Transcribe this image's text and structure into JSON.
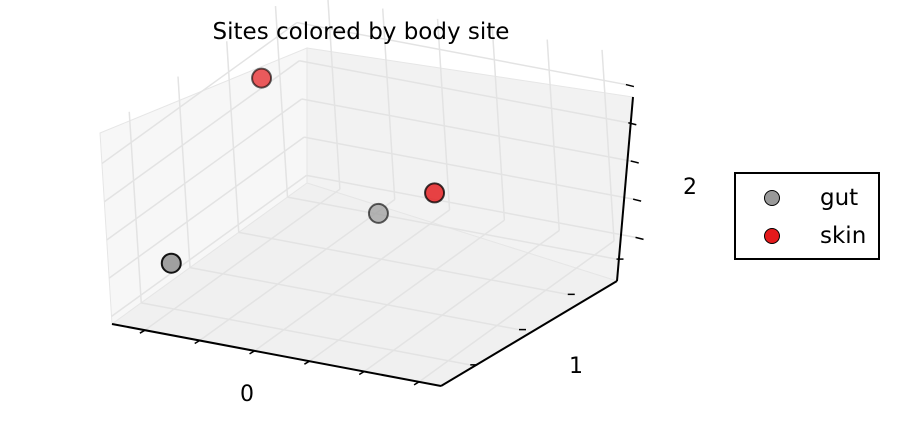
{
  "chart_data": {
    "type": "scatter",
    "title": "Sites colored by body site",
    "xlabel": "",
    "ylabel": "",
    "zlabel": "",
    "xlim": [
      -0.8,
      2.2
    ],
    "ylim": [
      -0.3,
      1.7
    ],
    "zlim": [
      0.4,
      2.9
    ],
    "x_ticks": [
      "0"
    ],
    "y_ticks": [
      "1"
    ],
    "z_ticks": [
      "2"
    ],
    "grid": true,
    "legend": "right",
    "series": [
      {
        "name": "gut",
        "color": "#999999",
        "points": [
          {
            "x": -0.5,
            "y": 0.0,
            "z": 1.0
          },
          {
            "x": 0.5,
            "y": 1.0,
            "z": 1.0
          }
        ]
      },
      {
        "name": "skin",
        "color": "#e41a1c",
        "points": [
          {
            "x": -0.5,
            "y": 1.0,
            "z": 2.5
          },
          {
            "x": 1.5,
            "y": 0.5,
            "z": 2.0
          }
        ]
      }
    ]
  }
}
